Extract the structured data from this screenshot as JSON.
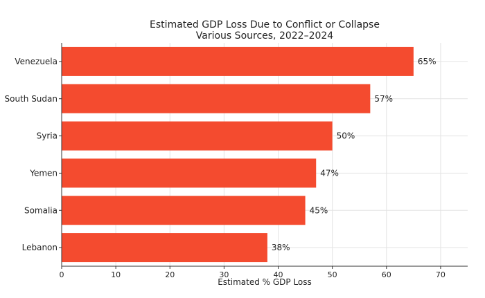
{
  "chart_data": {
    "type": "bar",
    "orientation": "horizontal",
    "title": "Estimated GDP Loss Due to Conflict or Collapse",
    "subtitle": "Various Sources, 2022–2024",
    "xlabel": "Estimated % GDP Loss",
    "ylabel": "",
    "categories": [
      "Venezuela",
      "South Sudan",
      "Syria",
      "Yemen",
      "Somalia",
      "Lebanon"
    ],
    "values": [
      65,
      57,
      50,
      47,
      45,
      38
    ],
    "value_labels": [
      "65%",
      "57%",
      "50%",
      "47%",
      "45%",
      "38%"
    ],
    "xlim": [
      0,
      75
    ],
    "xticks": [
      0,
      10,
      20,
      30,
      40,
      50,
      60,
      70
    ],
    "grid": true,
    "bar_color": "#f44b2f"
  }
}
